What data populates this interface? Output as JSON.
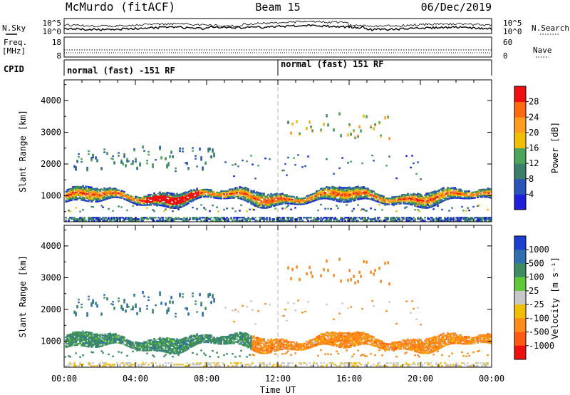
{
  "header": {
    "station": "McMurdo (fitACF)",
    "beam": "Beam 15",
    "date": "06/Dec/2019"
  },
  "noise_panel": {
    "left_label": "N.Sky",
    "right_label": "N.Search",
    "left_ticks": [
      "10^5",
      "10^0"
    ],
    "right_ticks": [
      "10^5",
      "10^0"
    ]
  },
  "freq_panel": {
    "label_line1": "Freq.",
    "label_line2": "[MHz]",
    "left_ticks": [
      "18",
      "8"
    ],
    "right_label": "Nave",
    "right_ticks": [
      "60",
      "0"
    ]
  },
  "cpid": {
    "label": "CPID",
    "segments": [
      {
        "start_hour": 0,
        "text": "normal (fast) -151 RF"
      },
      {
        "start_hour": 12,
        "text": "normal (fast) 151 RF"
      }
    ]
  },
  "chart_data": [
    {
      "type": "heatmap",
      "name": "power-panel",
      "ylabel": "Slant Range [km]",
      "xlabel": "Time UT",
      "xlim_hours": [
        0,
        24
      ],
      "ylim": [
        180,
        4650
      ],
      "yticks": [
        "1000",
        "2000",
        "3000",
        "4000"
      ],
      "xticks": [
        "00:00",
        "04:00",
        "08:00",
        "12:00",
        "16:00",
        "20:00",
        "00:00"
      ],
      "colorbar": {
        "label": "Power [dB]",
        "tick_labels": [
          "4",
          "8",
          "12",
          "16",
          "20",
          "24",
          "28"
        ],
        "colors": [
          "#1f1fdd",
          "#2a55b8",
          "#3b7f6a",
          "#4ca35a",
          "#f0c000",
          "#ff9d1e",
          "#ff6a10",
          "#ee1010"
        ]
      },
      "features": [
        {
          "t_start": 0.1,
          "t_end": 23.8,
          "range_km": [
            700,
            1300
          ],
          "level": "high"
        },
        {
          "t_start": 0.1,
          "t_end": 23.8,
          "range_km": [
            200,
            320
          ],
          "level": "low"
        },
        {
          "t_start": 0.5,
          "t_end": 8.5,
          "range_km": [
            1700,
            2500
          ],
          "level": "low"
        },
        {
          "t_start": 12.5,
          "t_end": 18.5,
          "range_km": [
            2700,
            3600
          ],
          "level": "mid"
        }
      ]
    },
    {
      "type": "heatmap",
      "name": "velocity-panel",
      "ylabel": "Slant Range [km]",
      "xlabel": "Time UT",
      "xlim_hours": [
        0,
        24
      ],
      "ylim": [
        180,
        4650
      ],
      "yticks": [
        "1000",
        "2000",
        "3000",
        "4000"
      ],
      "xticks": [
        "00:00",
        "04:00",
        "08:00",
        "12:00",
        "16:00",
        "20:00",
        "00:00"
      ],
      "colorbar": {
        "label": "Velocity [m s⁻¹]",
        "tick_labels": [
          "1000",
          "500",
          "100",
          "25",
          "-25",
          "-100",
          "-500",
          "-1000"
        ],
        "colors": [
          "#1c3fd0",
          "#2f6fb0",
          "#3f8c63",
          "#5fc83a",
          "#c8c8c8",
          "#f0c000",
          "#ff8c1a",
          "#ff5a14",
          "#ee1010"
        ]
      },
      "features": [
        {
          "t_start": 0.1,
          "t_end": 10.5,
          "range_km": [
            700,
            1400
          ],
          "sign": "positive"
        },
        {
          "t_start": 10.5,
          "t_end": 23.8,
          "range_km": [
            700,
            1500
          ],
          "sign": "negative"
        },
        {
          "t_start": 12.5,
          "t_end": 18.5,
          "range_km": [
            2700,
            3600
          ],
          "sign": "negative"
        },
        {
          "t_start": 0.5,
          "t_end": 8.5,
          "range_km": [
            1700,
            2500
          ],
          "sign": "positive"
        }
      ]
    }
  ]
}
